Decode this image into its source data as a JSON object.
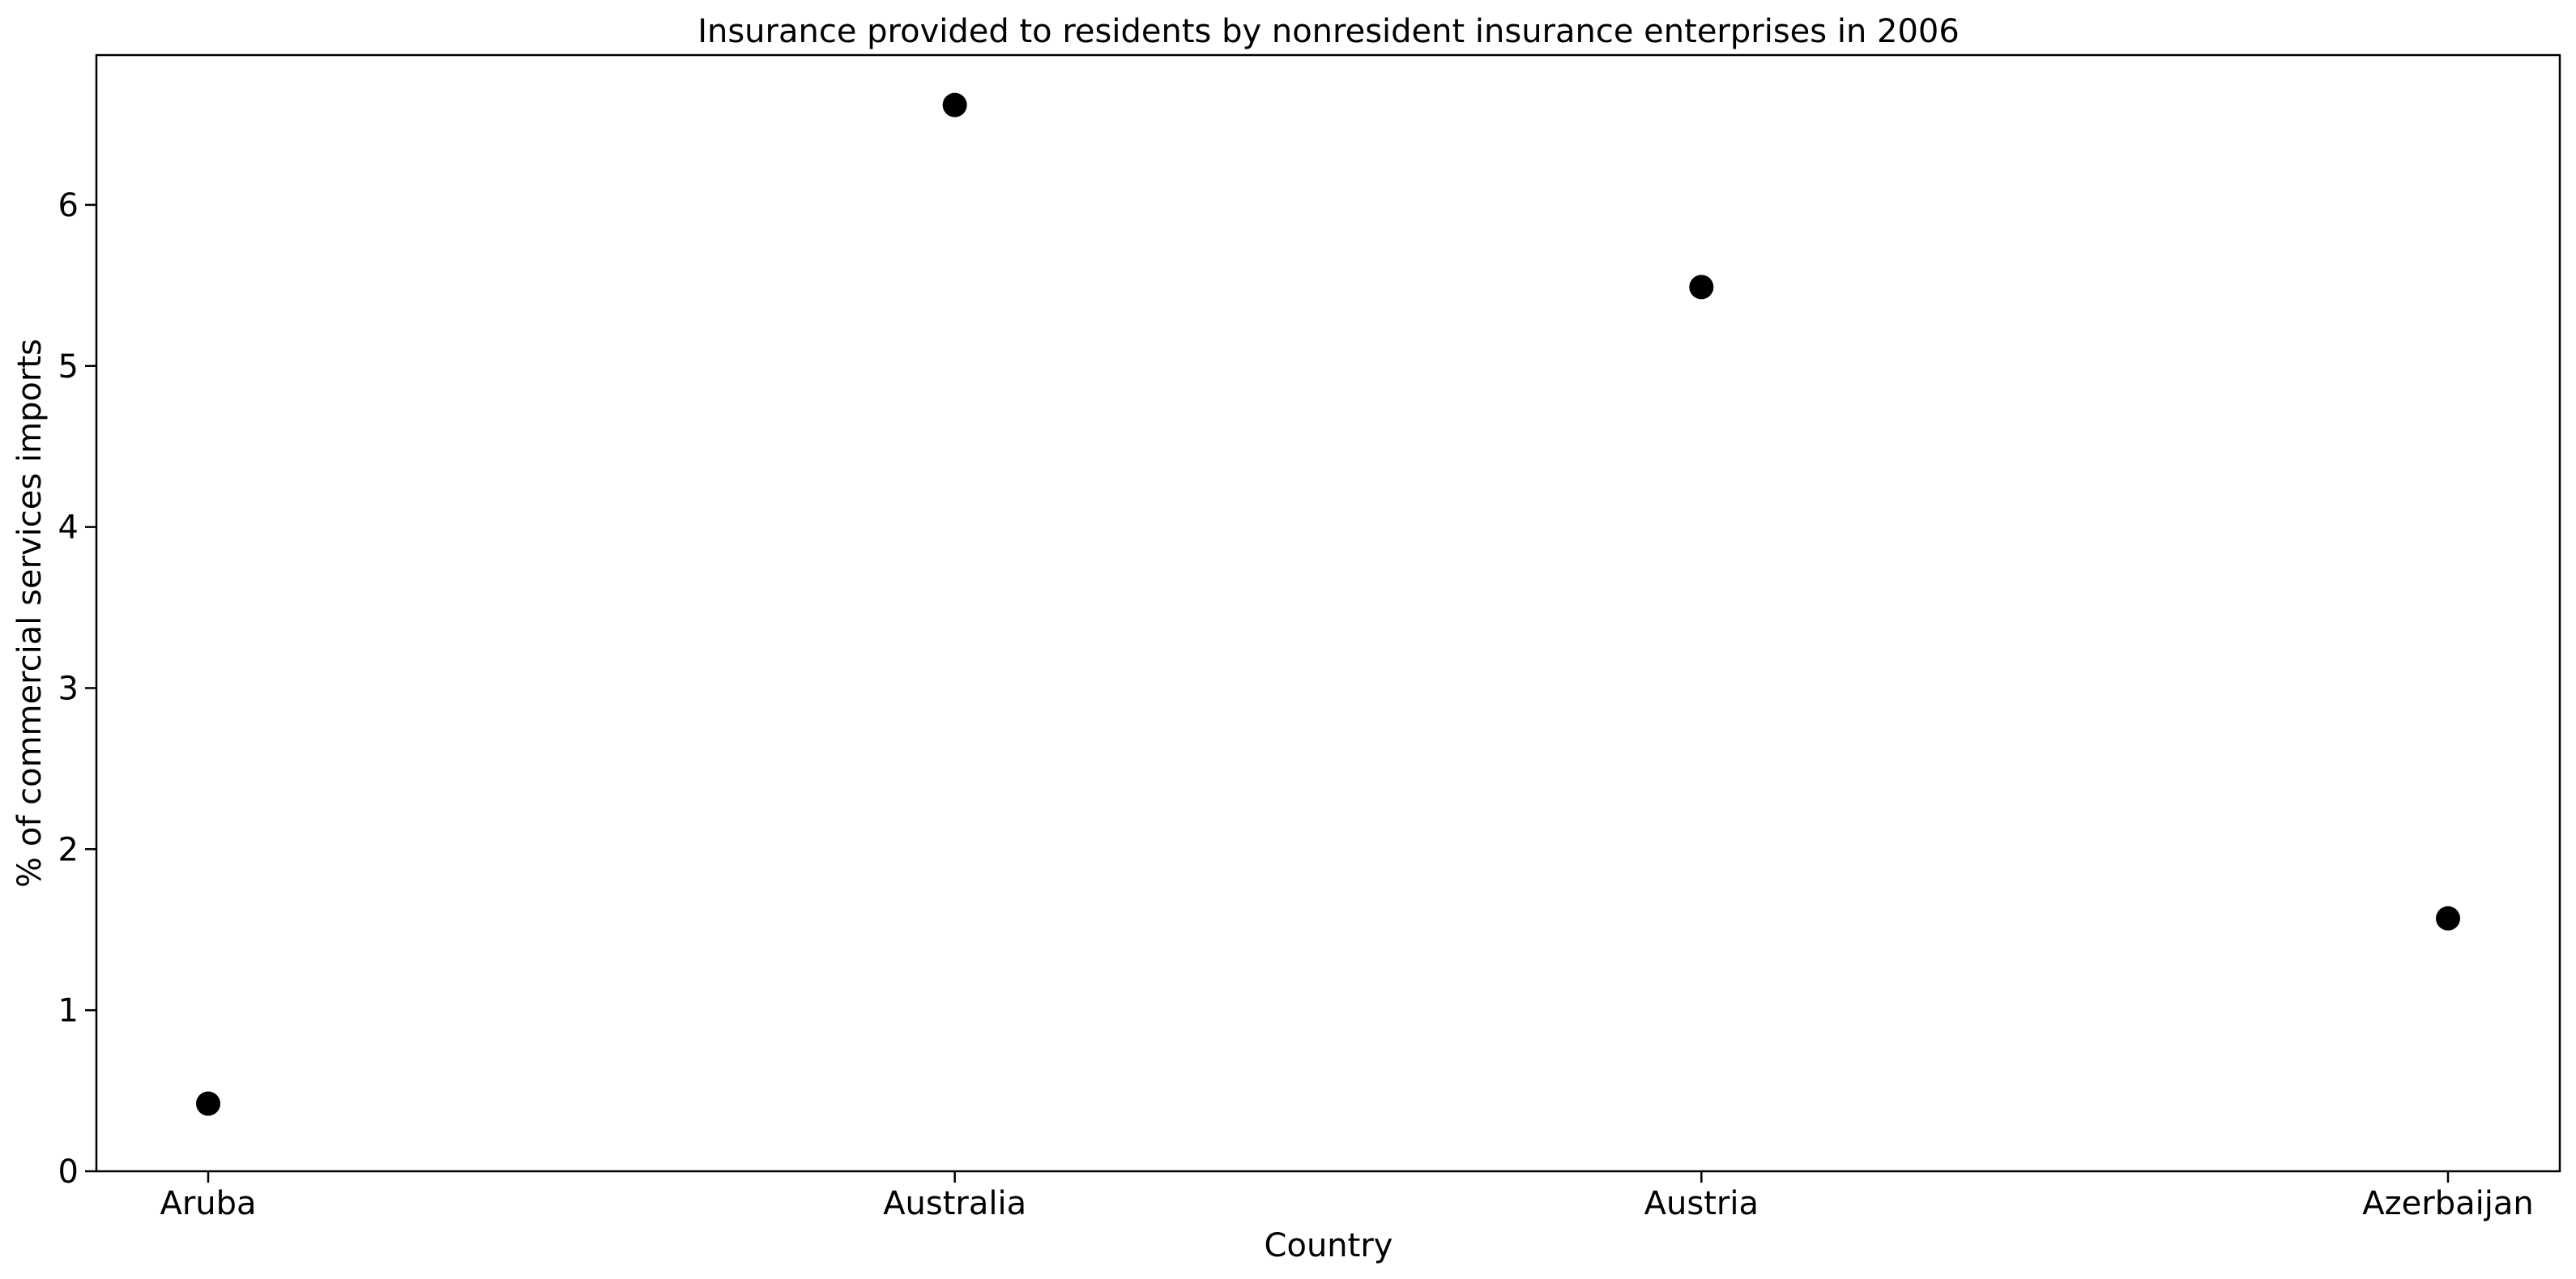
{
  "chart_data": {
    "type": "scatter",
    "title": "Insurance provided to residents by nonresident insurance enterprises in 2006",
    "xlabel": "Country",
    "ylabel": "% of commercial services imports",
    "categories": [
      "Aruba",
      "Australia",
      "Austria",
      "Azerbaijan"
    ],
    "values": [
      0.42,
      6.62,
      5.49,
      1.57
    ],
    "ylim": [
      0,
      6.93
    ],
    "yticks": [
      "0",
      "1",
      "2",
      "3",
      "4",
      "5",
      "6"
    ],
    "marker_color": "#000000",
    "grid": false,
    "legend": "none"
  }
}
